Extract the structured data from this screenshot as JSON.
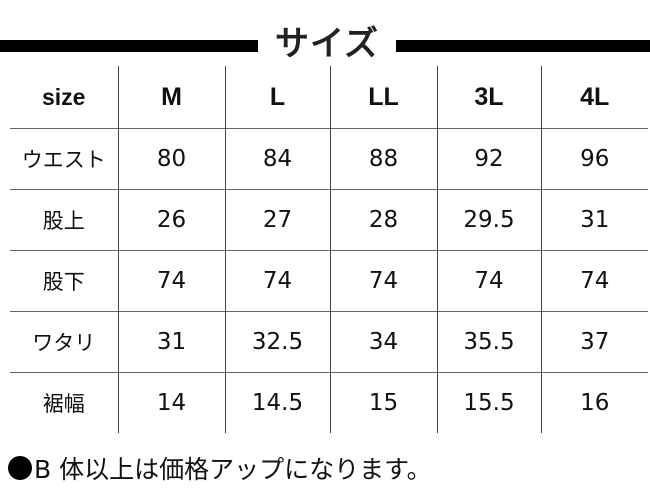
{
  "title": "サイズ",
  "table": {
    "headers": [
      "size",
      "M",
      "L",
      "LL",
      "3L",
      "4L"
    ],
    "rows": [
      {
        "label": "ウエスト",
        "values": [
          "80",
          "84",
          "88",
          "92",
          "96"
        ]
      },
      {
        "label": "股上",
        "values": [
          "26",
          "27",
          "28",
          "29.5",
          "31"
        ]
      },
      {
        "label": "股下",
        "values": [
          "74",
          "74",
          "74",
          "74",
          "74"
        ]
      },
      {
        "label": "ワタリ",
        "values": [
          "31",
          "32.5",
          "34",
          "35.5",
          "37"
        ]
      },
      {
        "label": "裾幅",
        "values": [
          "14",
          "14.5",
          "15",
          "15.5",
          "16"
        ]
      }
    ]
  },
  "note": "B 体以上は価格アップになります。"
}
